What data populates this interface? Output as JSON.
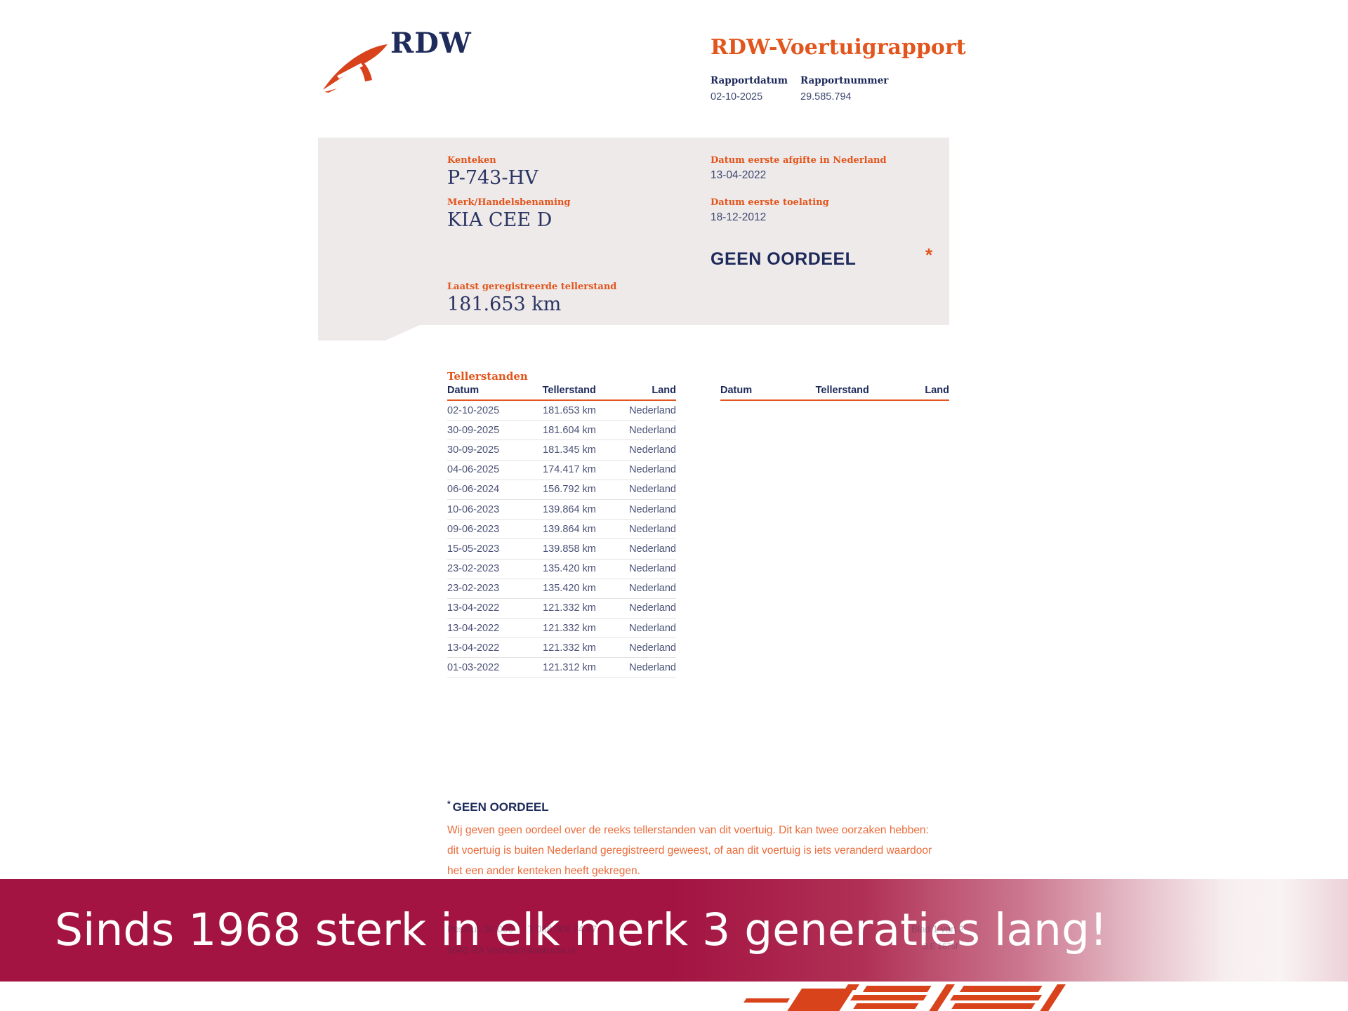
{
  "colors": {
    "orange": "#e2551c",
    "navy": "#1f2b5a",
    "gray_box": "#eeeaea",
    "banner_red": "#a31442",
    "logo_orange": "#d8431c"
  },
  "header": {
    "logo_text": "RDW",
    "title": "RDW-Voertuigrapport",
    "report_date_label": "Rapportdatum",
    "report_date": "02-10-2025",
    "report_number_label": "Rapportnummer",
    "report_number": "29.585.794"
  },
  "summary": {
    "kenteken_label": "Kenteken",
    "kenteken": "P-743-HV",
    "merk_label": "Merk/Handelsbenaming",
    "merk": "KIA CEE D",
    "tellerstand_label": "Laatst geregistreerde tellerstand",
    "tellerstand": "181.653 km",
    "afgifte_label": "Datum eerste afgifte in Nederland",
    "afgifte": "13-04-2022",
    "toelating_label": "Datum eerste toelating",
    "toelating": "18-12-2012",
    "oordeel": "GEEN OORDEEL",
    "oordeel_asterisk": "*"
  },
  "tables": {
    "section_title": "Tellerstanden",
    "columns": [
      "Datum",
      "Tellerstand",
      "Land"
    ],
    "rows": [
      [
        "02-10-2025",
        "181.653 km",
        "Nederland"
      ],
      [
        "30-09-2025",
        "181.604 km",
        "Nederland"
      ],
      [
        "30-09-2025",
        "181.345 km",
        "Nederland"
      ],
      [
        "04-06-2025",
        "174.417 km",
        "Nederland"
      ],
      [
        "06-06-2024",
        "156.792 km",
        "Nederland"
      ],
      [
        "10-06-2023",
        "139.864 km",
        "Nederland"
      ],
      [
        "09-06-2023",
        "139.864 km",
        "Nederland"
      ],
      [
        "15-05-2023",
        "139.858 km",
        "Nederland"
      ],
      [
        "23-02-2023",
        "135.420 km",
        "Nederland"
      ],
      [
        "23-02-2023",
        "135.420 km",
        "Nederland"
      ],
      [
        "13-04-2022",
        "121.332 km",
        "Nederland"
      ],
      [
        "13-04-2022",
        "121.332 km",
        "Nederland"
      ],
      [
        "13-04-2022",
        "121.332 km",
        "Nederland"
      ],
      [
        "01-03-2022",
        "121.312 km",
        "Nederland"
      ]
    ]
  },
  "footnote": {
    "asterisk": "*",
    "title": "GEEN OORDEEL",
    "text": "Wij geven geen oordeel over de reeks tellerstanden van dit voertuig. Dit kan twee oorzaken hebben: dit voertuig is buiten Nederland geregistreerd geweest, of aan dit voertuig is iets veranderd waardoor het een ander kenteken heeft gekregen."
  },
  "doc_footer": {
    "address_line1": "Postbus 30.000",
    "address_line2": "9640 RA Veendam",
    "phone": "T 088 008 74 47",
    "website": "www.rdw.nl",
    "page": "Blad 1 van 2",
    "doc_code": "3 E 1675f"
  },
  "banner": {
    "text": "Sinds 1968 sterk in elk merk 3 generaties lang!"
  }
}
